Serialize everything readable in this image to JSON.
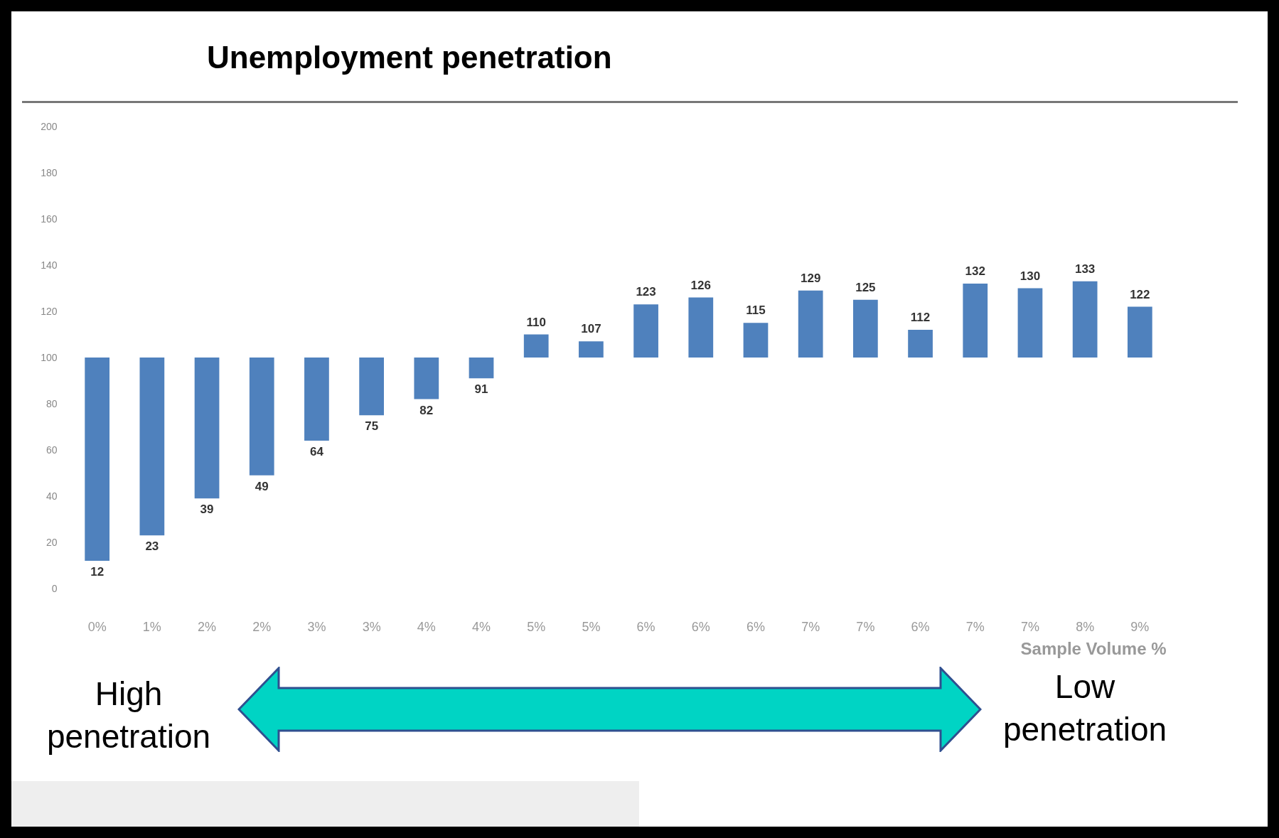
{
  "chart_data": {
    "type": "bar",
    "title": "Unemployment penetration",
    "xlabel": "Sample Volume %",
    "categories": [
      "0%",
      "1%",
      "2%",
      "2%",
      "3%",
      "3%",
      "4%",
      "4%",
      "5%",
      "5%",
      "6%",
      "6%",
      "6%",
      "7%",
      "7%",
      "6%",
      "7%",
      "7%",
      "8%",
      "9%"
    ],
    "base": [
      100,
      100,
      100,
      100,
      100,
      100,
      100,
      100,
      100,
      100,
      100,
      100,
      100,
      100,
      100,
      100,
      100,
      100,
      100,
      100
    ],
    "values": [
      -88,
      -77,
      -61,
      -51,
      -36,
      -25,
      -18,
      -9,
      10,
      7,
      23,
      26,
      15,
      29,
      25,
      12,
      32,
      30,
      33,
      22
    ],
    "value_labels": [
      "12",
      "23",
      "39",
      "49",
      "64",
      "75",
      "82",
      "91",
      "110",
      "107",
      "123",
      "126",
      "115",
      "129",
      "125",
      "112",
      "132",
      "130",
      "133",
      "122"
    ],
    "color": "#4f81bd",
    "ylim": [
      0,
      200
    ],
    "yticks": [
      0,
      20,
      40,
      60,
      80,
      100,
      120,
      140,
      160,
      180,
      200
    ],
    "grid": false,
    "annotations": [
      "High penetration",
      "Low penetration"
    ]
  }
}
